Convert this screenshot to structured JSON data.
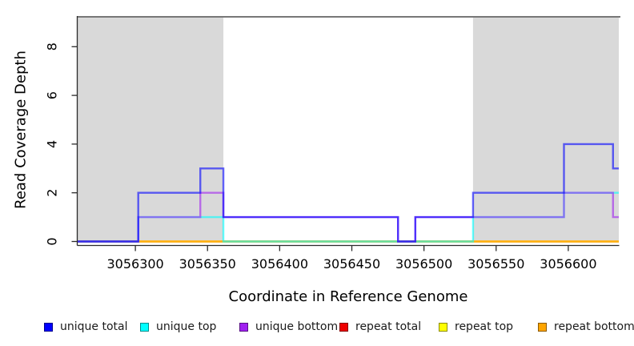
{
  "chart_data": {
    "type": "line",
    "subtype": "step-coverage",
    "title": "",
    "xlabel": "Coordinate in Reference Genome",
    "ylabel": "Read Coverage Depth",
    "xlim": [
      3056260,
      3056635
    ],
    "ylim": [
      0,
      9.3
    ],
    "x_ticks": [
      3056300,
      3056350,
      3056400,
      3056450,
      3056500,
      3056550,
      3056600
    ],
    "y_ticks": [
      0,
      2,
      4,
      6,
      8
    ],
    "grid": false,
    "legend_position": "bottom",
    "top_boundary_line_value": 9.3,
    "shaded_regions": {
      "color": "#d9d9d9",
      "regions": [
        [
          3056260,
          3056361
        ],
        [
          3056534,
          3056635
        ]
      ]
    },
    "series": [
      {
        "name": "unique total",
        "color": "#0000FF",
        "segments": [
          [
            3056260,
            3056302,
            0
          ],
          [
            3056302,
            3056345,
            2
          ],
          [
            3056345,
            3056361,
            3
          ],
          [
            3056361,
            3056482,
            1
          ],
          [
            3056482,
            3056494,
            0
          ],
          [
            3056494,
            3056534,
            1
          ],
          [
            3056534,
            3056597,
            2
          ],
          [
            3056597,
            3056631,
            4
          ],
          [
            3056631,
            3056635,
            3
          ]
        ]
      },
      {
        "name": "unique top",
        "color": "#00FFFF",
        "segments": [
          [
            3056260,
            3056302,
            0
          ],
          [
            3056302,
            3056361,
            1
          ],
          [
            3056361,
            3056534,
            0
          ],
          [
            3056534,
            3056597,
            1
          ],
          [
            3056597,
            3056635,
            2
          ]
        ]
      },
      {
        "name": "unique bottom",
        "color": "#A020F0",
        "segments": [
          [
            3056260,
            3056302,
            0
          ],
          [
            3056302,
            3056345,
            1
          ],
          [
            3056345,
            3056361,
            2
          ],
          [
            3056361,
            3056482,
            1
          ],
          [
            3056482,
            3056494,
            0
          ],
          [
            3056494,
            3056597,
            1
          ],
          [
            3056597,
            3056631,
            2
          ],
          [
            3056631,
            3056635,
            1
          ]
        ]
      },
      {
        "name": "repeat total",
        "color": "#EE0000",
        "segments": [
          [
            3056260,
            3056635,
            0
          ]
        ]
      },
      {
        "name": "repeat top",
        "color": "#FFFF00",
        "segments": [
          [
            3056260,
            3056635,
            0
          ]
        ]
      },
      {
        "name": "repeat bottom",
        "color": "#FFA500",
        "segments": [
          [
            3056260,
            3056635,
            0
          ]
        ]
      }
    ],
    "draw_order": [
      "repeat total",
      "repeat top",
      "repeat bottom",
      "unique top",
      "unique bottom",
      "unique total"
    ]
  }
}
